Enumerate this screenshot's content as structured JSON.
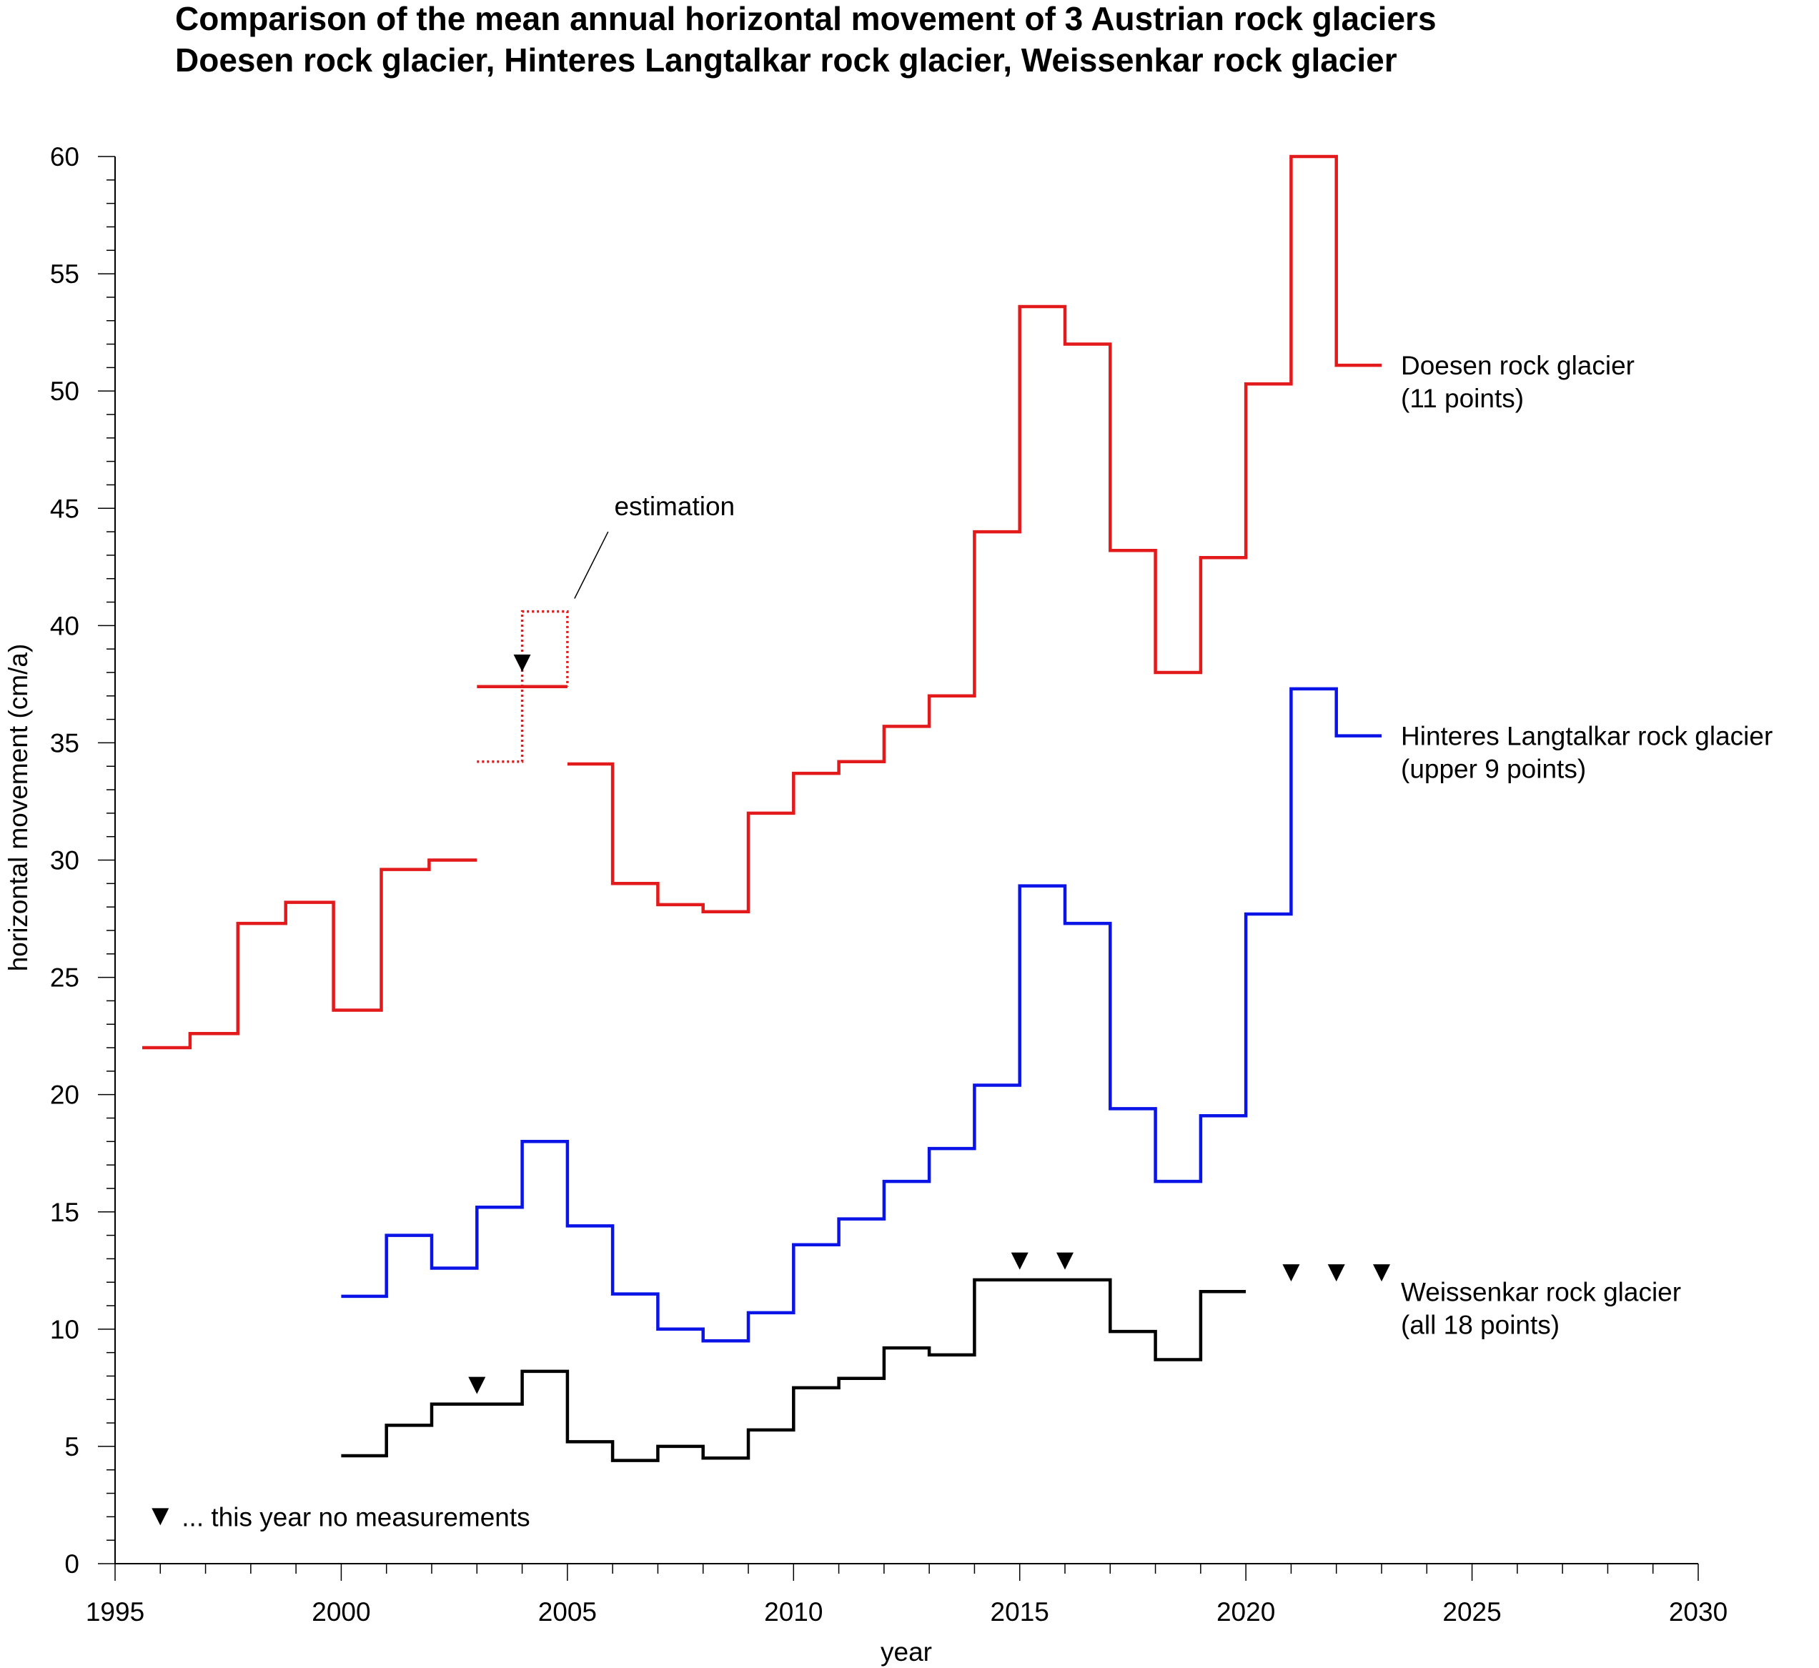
{
  "chart_data": {
    "type": "line",
    "step": true,
    "title": [
      "Comparison of the mean annual horizontal movement of 3 Austrian rock glaciers",
      "Doesen rock glacier, Hinteres Langtalkar rock glacier, Weissenkar rock glacier"
    ],
    "xlabel": "year",
    "ylabel": "horizontal movement (cm/a)",
    "xlim": [
      1995,
      2030
    ],
    "ylim": [
      0,
      60
    ],
    "x_ticks": [
      "1995",
      "2000",
      "2005",
      "2010",
      "2015",
      "2020",
      "2025",
      "2030"
    ],
    "y_ticks": [
      "0",
      "5",
      "10",
      "15",
      "20",
      "25",
      "30",
      "35",
      "40",
      "45",
      "50",
      "55",
      "60"
    ],
    "grid": false,
    "series": [
      {
        "name": "Doesen rock glacier",
        "label_lines": [
          "Doesen rock glacier",
          "(11 points)"
        ],
        "color": "#e31a1c",
        "segments": [
          {
            "start": 1995.6,
            "end": 2003.0,
            "values": [
              22.0,
              22.6,
              27.3,
              28.2,
              23.6,
              29.6,
              30.0
            ]
          },
          {
            "start": 2003.0,
            "end": 2005.0,
            "values": [
              37.4,
              37.4
            ]
          },
          {
            "start": 2005.0,
            "end": 2023.0,
            "values": [
              34.1,
              29.0,
              28.1,
              27.8,
              32.0,
              33.7,
              34.2,
              35.7,
              37.0,
              44.0,
              53.6,
              52.0,
              43.2,
              38.0,
              42.9,
              50.3,
              60.0,
              51.1
            ]
          }
        ],
        "estimation": {
          "start": 2003.0,
          "end": 2005.0,
          "values": [
            34.2,
            40.6
          ]
        }
      },
      {
        "name": "Hinteres Langtalkar rock glacier",
        "label_lines": [
          "Hinteres Langtalkar rock glacier",
          "(upper 9 points)"
        ],
        "color": "#0a14e6",
        "segments": [
          {
            "start": 2000.0,
            "end": 2023.0,
            "values": [
              11.4,
              14.0,
              12.6,
              15.2,
              18.0,
              14.4,
              11.5,
              10.0,
              9.5,
              10.7,
              13.6,
              14.7,
              16.3,
              17.7,
              20.4,
              28.9,
              27.3,
              19.4,
              16.3,
              19.1,
              27.7,
              37.3,
              35.3
            ]
          }
        ]
      },
      {
        "name": "Weissenkar rock glacier",
        "label_lines": [
          "Weissenkar rock glacier",
          "(all 18 points)"
        ],
        "color": "#000000",
        "segments": [
          {
            "start": 2000.0,
            "end": 2020.0,
            "values": [
              4.6,
              5.9,
              6.8,
              6.8,
              8.2,
              5.2,
              4.4,
              5.0,
              4.5,
              5.7,
              7.5,
              7.9,
              9.2,
              8.9,
              12.1,
              12.1,
              12.1,
              9.9,
              8.7,
              11.6
            ]
          }
        ]
      }
    ],
    "no_measurement_markers": [
      {
        "x": 2004.0,
        "y": 38.4
      },
      {
        "x": 2003.0,
        "y": 7.6
      },
      {
        "x": 2015.0,
        "y": 12.9
      },
      {
        "x": 2016.0,
        "y": 12.9
      },
      {
        "x": 2021.0,
        "y": 12.4
      },
      {
        "x": 2022.0,
        "y": 12.4
      },
      {
        "x": 2023.0,
        "y": 12.4
      }
    ],
    "annotations": {
      "estimation_label": "estimation",
      "legend_note": "... this year no measurements"
    }
  }
}
